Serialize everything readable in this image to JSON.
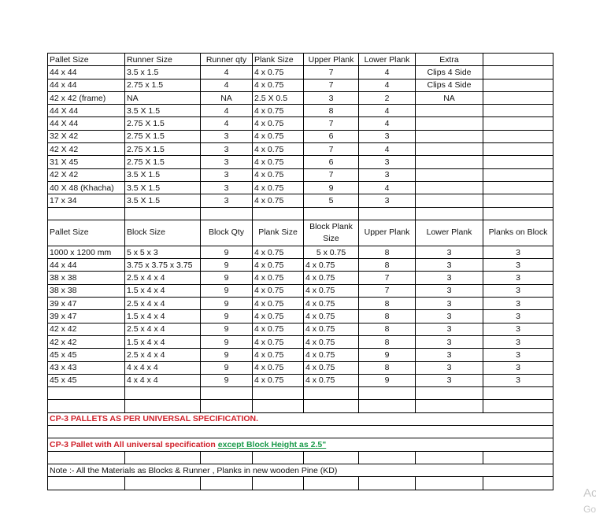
{
  "runner_table": {
    "headers": [
      "Pallet Size",
      "Runner Size",
      "Runner qty",
      "Plank Size",
      "Upper Plank",
      "Lower Plank",
      "Extra",
      ""
    ],
    "rows": [
      [
        "44 x 44",
        "3.5 x 1.5",
        "4",
        "4 x 0.75",
        "7",
        "4",
        "Clips 4 Side",
        ""
      ],
      [
        "44 x 44",
        "2.75 x 1.5",
        "4",
        "4 x 0.75",
        "7",
        "4",
        "Clips 4 Side",
        ""
      ],
      [
        "42 x 42 (frame)",
        "NA",
        "NA",
        "2.5 X 0.5",
        "3",
        "2",
        "NA",
        ""
      ],
      [
        "44 X 44",
        "3.5 X 1.5",
        "4",
        "4 x 0.75",
        "8",
        "4",
        "",
        ""
      ],
      [
        "44 X 44",
        "2.75 X 1.5",
        "4",
        "4 x 0.75",
        "7",
        "4",
        "",
        ""
      ],
      [
        "32 X 42",
        "2.75 X 1.5",
        "3",
        "4 x 0.75",
        "6",
        "3",
        "",
        ""
      ],
      [
        "42 X 42",
        "2.75 X 1.5",
        "3",
        "4 x 0.75",
        "7",
        "4",
        "",
        ""
      ],
      [
        "31 X 45",
        "2.75 X 1.5",
        "3",
        "4 x 0.75",
        "6",
        "3",
        "",
        ""
      ],
      [
        "42 X 42",
        "3.5 X 1.5",
        "3",
        "4 x 0.75",
        "7",
        "3",
        "",
        ""
      ],
      [
        "40 X 48 (Khacha)",
        "3.5 X 1.5",
        "3",
        "4 x 0.75",
        "9",
        "4",
        "",
        ""
      ],
      [
        "17 x 34",
        "3.5 X 1.5",
        "3",
        "4 x 0.75",
        "5",
        "3",
        "",
        ""
      ]
    ]
  },
  "block_table": {
    "headers": [
      "Pallet Size",
      "Block Size",
      "Block Qty",
      "Plank Size",
      "Block Plank Size",
      "Upper Plank",
      "Lower Plank",
      "Planks on Block"
    ],
    "rows": [
      [
        "1000 x 1200 mm",
        "5 x 5 x 3",
        "9",
        "4 x 0.75",
        "5 x 0.75",
        "8",
        "3",
        "3"
      ],
      [
        "44 x 44",
        "3.75 x 3.75 x 3.75",
        "9",
        "4 x 0.75",
        "4 x 0.75",
        "8",
        "3",
        "3"
      ],
      [
        "38 x 38",
        "2.5 x 4 x 4",
        "9",
        "4 x 0.75",
        "4 x 0.75",
        "7",
        "3",
        "3"
      ],
      [
        "38 x 38",
        "1.5 x 4 x 4",
        "9",
        "4 x 0.75",
        "4 x 0.75",
        "7",
        "3",
        "3"
      ],
      [
        "39 x 47",
        "2.5 x 4 x 4",
        "9",
        "4 x 0.75",
        "4 x 0.75",
        "8",
        "3",
        "3"
      ],
      [
        "39 x 47",
        "1.5 x 4 x 4",
        "9",
        "4 x 0.75",
        "4 x 0.75",
        "8",
        "3",
        "3"
      ],
      [
        "42 x 42",
        "2.5 x 4 x 4",
        "9",
        "4 x 0.75",
        "4 x 0.75",
        "8",
        "3",
        "3"
      ],
      [
        "42 x 42",
        "1.5 x 4 x 4",
        "9",
        "4 x 0.75",
        "4 x 0.75",
        "8",
        "3",
        "3"
      ],
      [
        "45 x 45",
        "2.5 x 4 x 4",
        "9",
        "4 x 0.75",
        "4 x 0.75",
        "9",
        "3",
        "3"
      ],
      [
        "43 x 43",
        "4 x 4 x 4",
        "9",
        "4 x 0.75",
        "4 x 0.75",
        "8",
        "3",
        "3"
      ],
      [
        "45 x 45",
        "4 x 4 x 4",
        "9",
        "4 x 0.75",
        "4 x 0.75",
        "9",
        "3",
        "3"
      ]
    ]
  },
  "notes": {
    "cp3_universal": "CP-3 PALLETS AS PER UNIVERSAL SPECIFICATION.",
    "cp3_except_prefix": "CP-3 Pallet with All universal specification",
    "cp3_except_highlight": "except Block Height as 2.5\"",
    "materials_note": "Note :- All the Materials as Blocks & Runner , Planks  in new wooden Pine (KD)"
  },
  "watermark": {
    "line1": "Ac",
    "line2": "Go"
  },
  "colors": {
    "red_text": "#d0202a",
    "green_text": "#1a9a4a"
  }
}
